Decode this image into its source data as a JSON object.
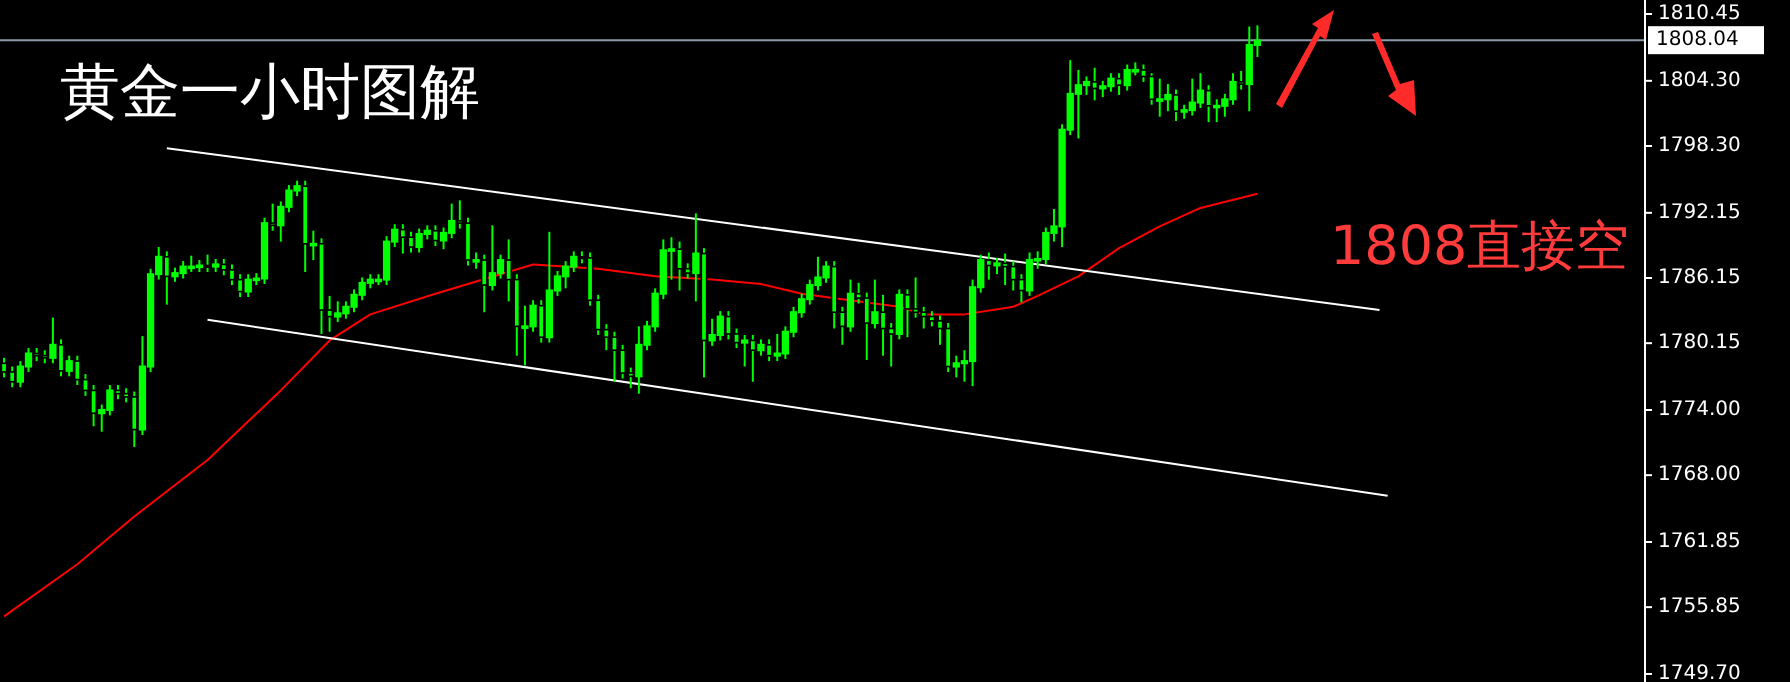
{
  "chart_data": {
    "type": "candlestick",
    "title": "黄金一小时图解",
    "annotations": [
      "1808直接空"
    ],
    "color": "#00ff00",
    "categories": [
      null,
      null,
      null,
      null,
      null,
      null,
      null,
      null,
      null,
      null,
      null,
      null,
      null,
      null,
      null,
      null,
      null,
      null,
      null,
      null,
      null,
      null,
      null,
      null,
      null,
      null,
      null,
      null,
      null,
      null,
      null,
      null,
      null,
      null,
      null,
      null,
      null,
      null,
      null,
      null,
      null,
      null,
      null,
      null,
      null,
      null,
      null,
      null,
      null,
      null,
      null,
      null,
      null,
      null,
      null,
      null,
      null,
      null,
      null,
      null,
      null,
      null,
      null,
      null,
      null,
      null,
      null,
      null,
      null,
      null,
      null,
      null,
      null,
      null,
      null,
      null,
      null,
      null,
      null,
      null,
      null,
      null,
      null,
      null,
      null,
      null,
      null,
      null,
      null,
      null,
      null,
      null,
      null,
      null,
      null,
      null,
      null,
      null,
      null,
      null,
      null,
      null,
      null,
      null,
      null,
      null,
      null,
      null,
      null,
      null,
      null,
      null,
      null,
      null,
      null,
      null,
      null,
      null,
      null,
      null,
      null,
      null,
      null,
      null,
      null,
      null,
      null,
      null,
      null,
      null,
      null,
      null,
      null,
      null,
      null,
      null,
      null,
      null,
      null,
      null,
      null,
      null,
      null,
      null,
      null,
      null,
      null,
      null,
      null,
      null,
      null,
      null,
      null,
      null,
      null,
      null,
      null,
      null,
      null,
      null,
      null,
      null,
      null,
      null,
      null,
      null,
      null,
      null,
      null,
      null,
      null,
      null,
      null,
      null,
      null,
      null,
      null,
      null,
      null,
      null,
      null,
      null,
      null,
      null,
      null,
      null,
      null,
      null,
      null,
      null,
      null,
      null,
      null,
      null,
      null,
      null,
      null,
      null,
      null,
      null,
      null,
      null
    ],
    "ohlc": [
      [
        1778.3,
        1778.8,
        1777.0,
        1777.5
      ],
      [
        1777.5,
        1778.0,
        1776.1,
        1776.6
      ],
      [
        1776.6,
        1778.5,
        1776.1,
        1778.0
      ],
      [
        1778.0,
        1779.7,
        1777.5,
        1779.2
      ],
      [
        1779.2,
        1779.7,
        1778.5,
        1779.0
      ],
      [
        1779.0,
        1779.5,
        1778.3,
        1778.8
      ],
      [
        1778.8,
        1782.5,
        1778.3,
        1780.0
      ],
      [
        1780.0,
        1780.5,
        1777.1,
        1777.6
      ],
      [
        1777.6,
        1779.0,
        1777.1,
        1778.5
      ],
      [
        1778.5,
        1779.0,
        1776.3,
        1776.8
      ],
      [
        1776.8,
        1777.3,
        1775.3,
        1775.8
      ],
      [
        1775.8,
        1776.3,
        1772.5,
        1773.7
      ],
      [
        1773.7,
        1774.5,
        1772.0,
        1774.0
      ],
      [
        1774.0,
        1776.3,
        1773.5,
        1775.8
      ],
      [
        1775.8,
        1776.3,
        1775.0,
        1775.5
      ],
      [
        1775.5,
        1776.0,
        1774.7,
        1775.2
      ],
      [
        1775.2,
        1775.7,
        1770.6,
        1772.2
      ],
      [
        1772.2,
        1780.8,
        1771.7,
        1778.0
      ],
      [
        1778.0,
        1787.0,
        1777.5,
        1786.5
      ],
      [
        1786.5,
        1789.0,
        1786.0,
        1788.1
      ],
      [
        1788.1,
        1788.6,
        1783.7,
        1786.3
      ],
      [
        1786.3,
        1787.1,
        1785.8,
        1786.6
      ],
      [
        1786.6,
        1787.7,
        1786.1,
        1787.2
      ],
      [
        1787.2,
        1788.2,
        1786.7,
        1787.2
      ],
      [
        1787.2,
        1787.8,
        1786.7,
        1787.3
      ],
      [
        1787.3,
        1788.3,
        1786.7,
        1787.2
      ],
      [
        1787.2,
        1787.9,
        1786.7,
        1787.4
      ],
      [
        1787.4,
        1787.9,
        1786.4,
        1786.9
      ],
      [
        1786.9,
        1787.4,
        1785.5,
        1786.0
      ],
      [
        1786.0,
        1786.5,
        1784.4,
        1784.9
      ],
      [
        1784.9,
        1786.5,
        1784.4,
        1786.0
      ],
      [
        1786.0,
        1786.6,
        1785.5,
        1786.1
      ],
      [
        1786.1,
        1791.7,
        1785.6,
        1791.2
      ],
      [
        1791.2,
        1793.0,
        1790.5,
        1791.0
      ],
      [
        1791.0,
        1793.2,
        1789.5,
        1792.7
      ],
      [
        1792.7,
        1794.7,
        1792.2,
        1794.2
      ],
      [
        1794.2,
        1795.1,
        1793.7,
        1794.6
      ],
      [
        1794.6,
        1795.1,
        1786.7,
        1789.3
      ],
      [
        1789.3,
        1790.5,
        1787.8,
        1789.3
      ],
      [
        1789.3,
        1789.8,
        1781.0,
        1783.2
      ],
      [
        1783.2,
        1784.5,
        1781.2,
        1782.6
      ],
      [
        1782.6,
        1784.0,
        1782.1,
        1782.9
      ],
      [
        1782.9,
        1784.0,
        1782.4,
        1783.5
      ],
      [
        1783.5,
        1785.1,
        1783.0,
        1784.6
      ],
      [
        1784.6,
        1786.2,
        1784.1,
        1785.7
      ],
      [
        1785.7,
        1786.5,
        1785.2,
        1786.0
      ],
      [
        1786.0,
        1786.5,
        1785.5,
        1786.0
      ],
      [
        1786.0,
        1790.0,
        1785.5,
        1789.5
      ],
      [
        1789.5,
        1791.1,
        1789.0,
        1790.6
      ],
      [
        1790.6,
        1791.1,
        1788.4,
        1789.9
      ],
      [
        1789.9,
        1790.4,
        1788.5,
        1789.0
      ],
      [
        1789.0,
        1790.7,
        1788.5,
        1790.2
      ],
      [
        1790.2,
        1791.0,
        1789.7,
        1790.5
      ],
      [
        1790.5,
        1791.0,
        1789.1,
        1789.6
      ],
      [
        1789.6,
        1790.8,
        1788.8,
        1790.3
      ],
      [
        1790.3,
        1793.0,
        1789.8,
        1791.4
      ],
      [
        1791.4,
        1793.3,
        1790.7,
        1791.2
      ],
      [
        1791.2,
        1791.7,
        1787.3,
        1787.8
      ],
      [
        1787.8,
        1788.5,
        1787.0,
        1787.8
      ],
      [
        1787.8,
        1788.3,
        1783.0,
        1785.5
      ],
      [
        1785.5,
        1791.0,
        1785.0,
        1786.6
      ],
      [
        1786.6,
        1788.3,
        1786.1,
        1787.8
      ],
      [
        1787.8,
        1789.7,
        1784.0,
        1786.0
      ],
      [
        1786.0,
        1786.5,
        1779.0,
        1781.7
      ],
      [
        1781.7,
        1783.6,
        1778.1,
        1781.7
      ],
      [
        1781.7,
        1784.1,
        1781.2,
        1783.6
      ],
      [
        1783.6,
        1784.1,
        1780.2,
        1780.7
      ],
      [
        1780.7,
        1790.4,
        1780.2,
        1785.0
      ],
      [
        1785.0,
        1786.8,
        1784.5,
        1786.3
      ],
      [
        1786.3,
        1787.7,
        1785.2,
        1787.2
      ],
      [
        1787.2,
        1788.6,
        1786.7,
        1788.1
      ],
      [
        1788.1,
        1788.6,
        1787.5,
        1788.0
      ],
      [
        1788.0,
        1788.5,
        1783.6,
        1784.1
      ],
      [
        1784.1,
        1784.6,
        1780.9,
        1781.4
      ],
      [
        1781.4,
        1781.9,
        1779.5,
        1780.7
      ],
      [
        1780.7,
        1781.2,
        1776.6,
        1779.5
      ],
      [
        1779.5,
        1780.0,
        1776.9,
        1777.4
      ],
      [
        1777.4,
        1777.9,
        1776.0,
        1777.1
      ],
      [
        1777.1,
        1781.7,
        1775.5,
        1780.0
      ],
      [
        1780.0,
        1782.2,
        1779.5,
        1781.7
      ],
      [
        1781.7,
        1785.2,
        1781.2,
        1784.7
      ],
      [
        1784.7,
        1789.7,
        1784.2,
        1788.7
      ],
      [
        1788.7,
        1789.9,
        1786.0,
        1788.8
      ],
      [
        1788.8,
        1789.5,
        1785.0,
        1787.0
      ],
      [
        1787.0,
        1787.5,
        1786.1,
        1786.6
      ],
      [
        1786.6,
        1792.1,
        1784.0,
        1788.4
      ],
      [
        1788.4,
        1788.9,
        1777.0,
        1780.4
      ],
      [
        1780.4,
        1782.4,
        1779.9,
        1780.9
      ],
      [
        1780.9,
        1783.1,
        1780.4,
        1782.6
      ],
      [
        1782.6,
        1783.1,
        1780.5,
        1781.0
      ],
      [
        1781.0,
        1781.5,
        1779.7,
        1780.2
      ],
      [
        1780.2,
        1780.9,
        1778.0,
        1780.4
      ],
      [
        1780.4,
        1780.9,
        1776.6,
        1779.5
      ],
      [
        1779.5,
        1780.5,
        1779.0,
        1780.0
      ],
      [
        1780.0,
        1780.5,
        1778.5,
        1779.0
      ],
      [
        1779.0,
        1781.0,
        1778.5,
        1779.2
      ],
      [
        1779.2,
        1781.7,
        1778.7,
        1781.2
      ],
      [
        1781.2,
        1783.5,
        1780.7,
        1783.0
      ],
      [
        1783.0,
        1784.7,
        1782.5,
        1784.2
      ],
      [
        1784.2,
        1786.0,
        1783.7,
        1785.5
      ],
      [
        1785.5,
        1788.1,
        1785.0,
        1786.2
      ],
      [
        1786.2,
        1787.7,
        1785.7,
        1787.2
      ],
      [
        1787.2,
        1787.7,
        1781.5,
        1783.0
      ],
      [
        1783.0,
        1783.5,
        1780.0,
        1781.7
      ],
      [
        1781.7,
        1786.0,
        1781.2,
        1784.7
      ],
      [
        1784.7,
        1785.7,
        1783.8,
        1784.3
      ],
      [
        1784.3,
        1784.8,
        1778.6,
        1782.0
      ],
      [
        1782.0,
        1786.0,
        1781.5,
        1783.0
      ],
      [
        1783.0,
        1784.6,
        1779.0,
        1781.5
      ],
      [
        1781.5,
        1782.0,
        1778.0,
        1781.0
      ],
      [
        1781.0,
        1785.1,
        1780.5,
        1784.6
      ],
      [
        1784.6,
        1785.1,
        1780.7,
        1783.3
      ],
      [
        1783.3,
        1786.2,
        1782.5,
        1783.0
      ],
      [
        1783.0,
        1783.5,
        1781.5,
        1782.6
      ],
      [
        1782.6,
        1783.1,
        1781.7,
        1782.2
      ],
      [
        1782.2,
        1782.7,
        1780.0,
        1781.5
      ],
      [
        1781.5,
        1782.0,
        1777.5,
        1778.0
      ],
      [
        1778.0,
        1779.0,
        1777.0,
        1778.3
      ],
      [
        1778.3,
        1779.5,
        1776.6,
        1778.5
      ],
      [
        1778.5,
        1786.0,
        1776.2,
        1785.3
      ],
      [
        1785.3,
        1788.3,
        1784.8,
        1787.8
      ],
      [
        1787.8,
        1788.5,
        1786.0,
        1787.3
      ],
      [
        1787.3,
        1788.0,
        1786.5,
        1787.5
      ],
      [
        1787.5,
        1788.4,
        1785.5,
        1787.2
      ],
      [
        1787.2,
        1787.7,
        1785.0,
        1786.0
      ],
      [
        1786.0,
        1786.5,
        1783.9,
        1785.0
      ],
      [
        1785.0,
        1788.5,
        1784.5,
        1787.8
      ],
      [
        1787.8,
        1788.6,
        1787.0,
        1787.9
      ],
      [
        1787.9,
        1790.8,
        1787.4,
        1790.3
      ],
      [
        1790.3,
        1792.5,
        1789.5,
        1790.9
      ],
      [
        1790.9,
        1800.3,
        1789.0,
        1799.8
      ],
      [
        1799.8,
        1806.2,
        1799.3,
        1803.1
      ],
      [
        1803.1,
        1805.3,
        1799.0,
        1803.9
      ],
      [
        1803.9,
        1804.7,
        1803.0,
        1804.2
      ],
      [
        1804.2,
        1805.5,
        1802.5,
        1803.6
      ],
      [
        1803.6,
        1804.3,
        1802.8,
        1803.8
      ],
      [
        1803.8,
        1805.0,
        1803.3,
        1804.5
      ],
      [
        1804.5,
        1805.0,
        1803.0,
        1803.9
      ],
      [
        1803.9,
        1805.8,
        1803.4,
        1805.3
      ],
      [
        1805.3,
        1806.0,
        1804.8,
        1805.3
      ],
      [
        1805.3,
        1805.8,
        1804.2,
        1804.7
      ],
      [
        1804.7,
        1805.0,
        1802.1,
        1802.6
      ],
      [
        1802.6,
        1804.5,
        1801.0,
        1802.6
      ],
      [
        1802.6,
        1804.0,
        1801.5,
        1803.0
      ],
      [
        1803.0,
        1803.5,
        1800.6,
        1801.5
      ],
      [
        1801.5,
        1802.1,
        1800.8,
        1801.6
      ],
      [
        1801.6,
        1804.5,
        1801.1,
        1802.3
      ],
      [
        1802.3,
        1805.0,
        1801.8,
        1803.4
      ],
      [
        1803.4,
        1803.9,
        1800.5,
        1802.0
      ],
      [
        1802.0,
        1802.6,
        1800.5,
        1802.0
      ],
      [
        1802.0,
        1803.1,
        1801.0,
        1802.6
      ],
      [
        1802.6,
        1805.0,
        1802.1,
        1804.2
      ],
      [
        1804.2,
        1805.2,
        1803.5,
        1804.0
      ],
      [
        1804.0,
        1809.3,
        1801.5,
        1807.6
      ],
      [
        1807.6,
        1809.4,
        1806.5,
        1808.0
      ],
      null,
      null,
      null,
      null,
      null,
      null,
      null,
      null,
      null,
      null,
      null,
      null,
      null,
      null,
      null,
      null,
      null,
      null,
      null,
      null,
      null,
      null,
      null,
      null,
      null,
      null,
      null,
      null,
      null,
      null,
      null,
      null,
      null,
      null,
      null,
      null,
      null,
      null,
      null,
      null,
      null,
      null,
      null,
      null,
      null,
      null,
      null
    ],
    "series": [
      {
        "type": "line",
        "color": "#ff0000",
        "values": [
          1755.0,
          null,
          null,
          null,
          null,
          null,
          null,
          null,
          null,
          1759.8,
          null,
          null,
          null,
          null,
          null,
          null,
          1764.2,
          null,
          null,
          null,
          null,
          null,
          null,
          null,
          null,
          1769.4,
          null,
          null,
          null,
          null,
          null,
          null,
          null,
          null,
          1775.8,
          null,
          null,
          null,
          null,
          null,
          1780.4,
          null,
          null,
          null,
          null,
          1782.8,
          null,
          null,
          null,
          null,
          null,
          null,
          null,
          1784.7,
          null,
          null,
          null,
          null,
          null,
          null,
          null,
          null,
          null,
          null,
          null,
          1787.4,
          null,
          null,
          null,
          null,
          null,
          null,
          null,
          1787.0,
          null,
          null,
          null,
          null,
          null,
          null,
          1786.3,
          null,
          null,
          null,
          null,
          null,
          null,
          1786.0,
          null,
          null,
          null,
          null,
          null,
          1785.6,
          null,
          null,
          null,
          null,
          1784.7,
          null,
          null,
          null,
          null,
          1784.2,
          null,
          null,
          null,
          null,
          null,
          null,
          1783.5,
          null,
          null,
          1782.8,
          null,
          null,
          null,
          null,
          1782.8,
          null,
          null,
          null,
          null,
          null,
          1783.5,
          null,
          null,
          1784.5,
          null,
          null,
          null,
          null,
          1786.3,
          null,
          null,
          null,
          null,
          1788.9,
          null,
          null,
          null,
          null,
          1790.9,
          null,
          null,
          null,
          null,
          1792.6,
          null,
          null,
          null,
          null,
          null,
          null,
          1793.9,
          null,
          null,
          null,
          null,
          null,
          null,
          null,
          null,
          null,
          null,
          null,
          null,
          null,
          null,
          null,
          null,
          null,
          null,
          null,
          null,
          null,
          null,
          null,
          null,
          null,
          null,
          null,
          null,
          null,
          null,
          null,
          null,
          null,
          null,
          null,
          null,
          null,
          null,
          null,
          null,
          null,
          null,
          null,
          null,
          null,
          null,
          null
        ]
      },
      {
        "type": "line",
        "color": "#ffffff",
        "values": [
          null,
          null,
          null,
          null,
          null,
          null,
          null,
          null,
          null,
          null,
          null,
          null,
          null,
          null,
          null,
          null,
          null,
          null,
          null,
          null,
          1798.1,
          null,
          null,
          null,
          null,
          null,
          null,
          null,
          null,
          null,
          null,
          null,
          null,
          null,
          null,
          null,
          null,
          null,
          null,
          null,
          null,
          null,
          null,
          null,
          null,
          null,
          null,
          null,
          null,
          null,
          null,
          null,
          null,
          null,
          null,
          null,
          null,
          null,
          null,
          null,
          null,
          null,
          null,
          null,
          null,
          null,
          null,
          null,
          null,
          null,
          null,
          null,
          null,
          null,
          null,
          null,
          null,
          null,
          null,
          null,
          null,
          null,
          null,
          null,
          null,
          null,
          null,
          null,
          null,
          null,
          null,
          null,
          null,
          null,
          null,
          null,
          null,
          null,
          null,
          null,
          null,
          null,
          null,
          null,
          null,
          null,
          null,
          null,
          null,
          null,
          null,
          null,
          null,
          null,
          null,
          null,
          null,
          null,
          null,
          null,
          null,
          null,
          null,
          null,
          null,
          null,
          null,
          null,
          null,
          null,
          null,
          null,
          null,
          null,
          null,
          null,
          null,
          null,
          null,
          null,
          null,
          null,
          null,
          null,
          null,
          null,
          null,
          null,
          null,
          null,
          null,
          null,
          null,
          null,
          null,
          null,
          null,
          null,
          null,
          null,
          null,
          null,
          null,
          null,
          null,
          null,
          null,
          null,
          null,
          1783.2,
          null,
          null,
          null,
          null,
          null,
          null,
          null,
          null,
          null,
          null,
          null,
          null,
          null,
          null,
          null,
          null,
          null,
          null,
          null,
          null,
          null,
          null,
          null,
          null,
          null,
          null,
          null,
          null,
          null,
          null,
          null,
          null
        ]
      },
      {
        "type": "line",
        "color": "#ffffff",
        "values": [
          null,
          null,
          null,
          null,
          null,
          null,
          null,
          null,
          null,
          null,
          null,
          null,
          null,
          null,
          null,
          null,
          null,
          null,
          null,
          null,
          null,
          null,
          null,
          null,
          null,
          1782.3,
          null,
          null,
          null,
          null,
          null,
          null,
          null,
          null,
          null,
          null,
          null,
          null,
          null,
          null,
          null,
          null,
          null,
          null,
          null,
          null,
          null,
          null,
          null,
          null,
          null,
          null,
          null,
          null,
          null,
          null,
          null,
          null,
          null,
          null,
          null,
          null,
          null,
          null,
          null,
          null,
          null,
          null,
          null,
          null,
          null,
          null,
          null,
          null,
          null,
          null,
          null,
          null,
          null,
          null,
          null,
          null,
          null,
          null,
          null,
          null,
          null,
          null,
          null,
          null,
          null,
          null,
          null,
          null,
          null,
          null,
          null,
          null,
          null,
          null,
          null,
          null,
          null,
          null,
          null,
          null,
          null,
          null,
          null,
          null,
          null,
          null,
          null,
          null,
          null,
          null,
          null,
          null,
          null,
          null,
          null,
          null,
          null,
          null,
          null,
          null,
          null,
          null,
          null,
          null,
          null,
          null,
          null,
          null,
          null,
          null,
          null,
          null,
          null,
          null,
          null,
          null,
          null,
          null,
          null,
          null,
          null,
          null,
          null,
          null,
          null,
          null,
          null,
          null,
          null,
          null,
          null,
          null,
          null,
          null,
          null,
          null,
          null,
          null,
          null,
          null,
          null,
          null,
          null,
          null,
          1766.1,
          null,
          null,
          null,
          null,
          null,
          null,
          null,
          null,
          null,
          null,
          null,
          null,
          null,
          null,
          null,
          null,
          null,
          null,
          null,
          null,
          null,
          null,
          null,
          null,
          null,
          null,
          null,
          null,
          null,
          null,
          null
        ]
      }
    ],
    "ref_lines": [
      {
        "axis": "y",
        "value": 1808.04,
        "label": "1808.04",
        "color": "#8a9aaa"
      }
    ],
    "ylim": [
      1748.96,
      1811.74
    ],
    "yticks": [
      {
        "value": 1810.45,
        "label": "1810.45"
      },
      {
        "value": 1804.3,
        "label": "1804.30"
      },
      {
        "value": 1798.3,
        "label": "1798.30"
      },
      {
        "value": 1792.15,
        "label": "1792.15"
      },
      {
        "value": 1786.15,
        "label": "1786.15"
      },
      {
        "value": 1780.15,
        "label": "1780.15"
      },
      {
        "value": 1774,
        "label": "1774.00"
      },
      {
        "value": 1768,
        "label": "1768.00"
      },
      {
        "value": 1761.85,
        "label": "1761.85"
      },
      {
        "value": 1755.85,
        "label": "1755.85"
      },
      {
        "value": 1749.7,
        "label": "1749.70"
      }
    ],
    "tick_labels": "y"
  }
}
